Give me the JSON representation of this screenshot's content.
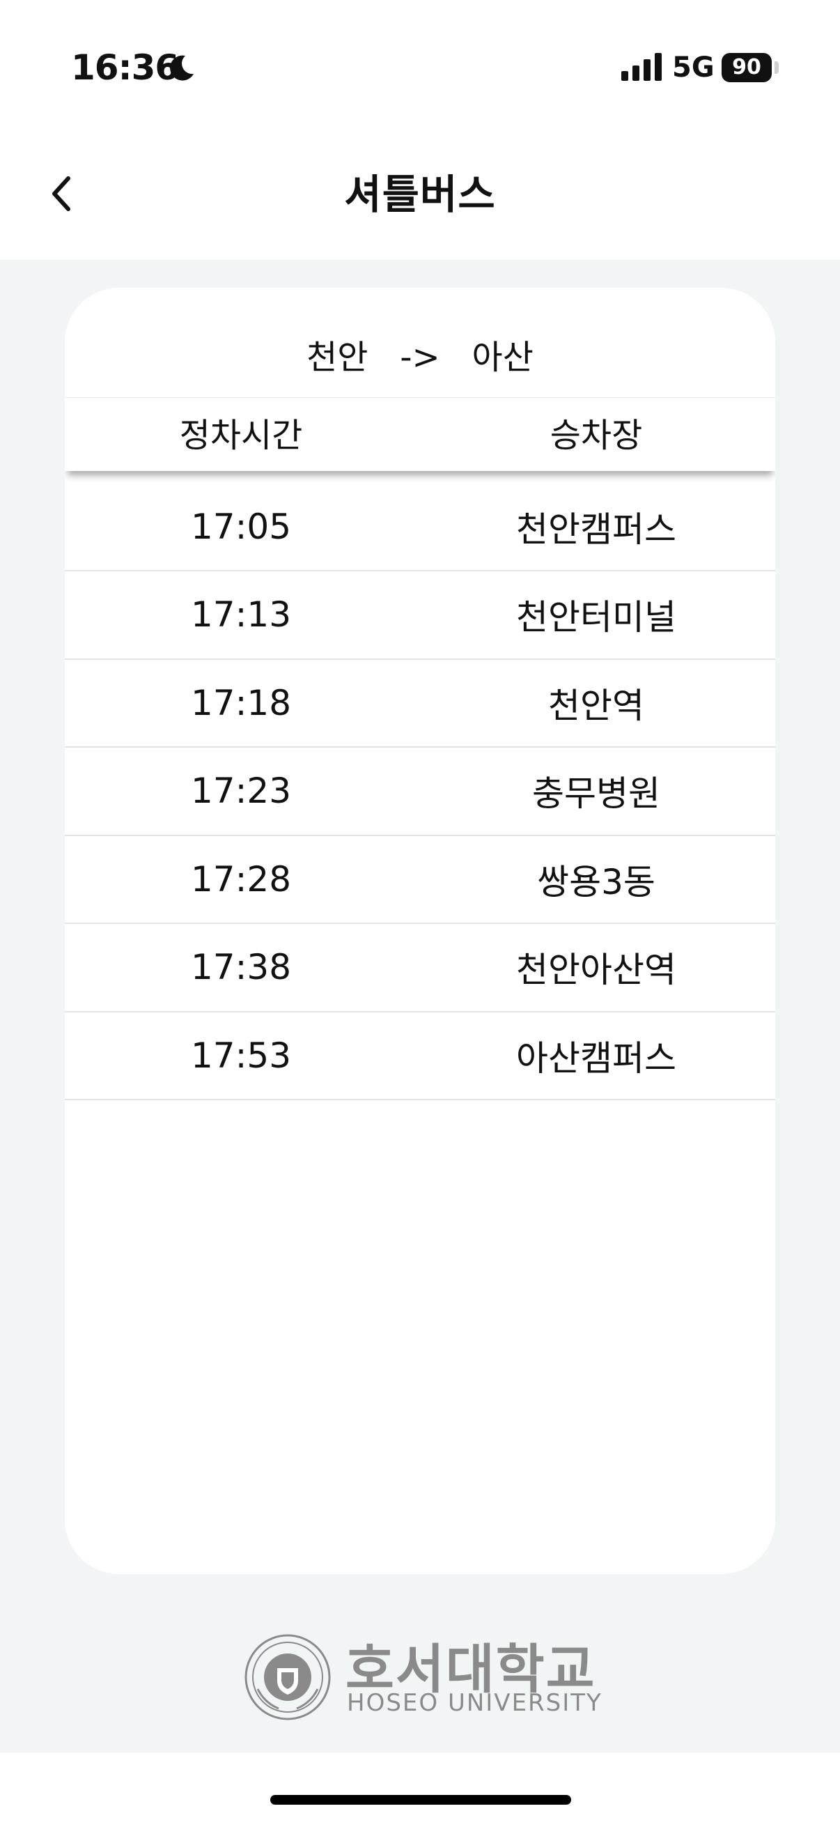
{
  "status_bar": {
    "time": "16:36",
    "network": "5G",
    "battery": "90"
  },
  "nav": {
    "title": "셔틀버스"
  },
  "route": {
    "label": "천안   ->   아산"
  },
  "table": {
    "headers": [
      "정차시간",
      "승차장"
    ],
    "rows": [
      {
        "time": "17:05",
        "stop": "천안캠퍼스"
      },
      {
        "time": "17:13",
        "stop": "천안터미널"
      },
      {
        "time": "17:18",
        "stop": "천안역"
      },
      {
        "time": "17:23",
        "stop": "충무병원"
      },
      {
        "time": "17:28",
        "stop": "쌍용3동"
      },
      {
        "time": "17:38",
        "stop": "천안아산역"
      },
      {
        "time": "17:53",
        "stop": "아산캠퍼스"
      }
    ]
  },
  "footer": {
    "logo_korean": "호서대학교",
    "logo_english": "HOSEO UNIVERSITY"
  },
  "colors": {
    "background": "#f2f5f6",
    "card": "#ffffff",
    "logo_gray": "#8a8a8a",
    "divider": "#e3e3e3"
  }
}
